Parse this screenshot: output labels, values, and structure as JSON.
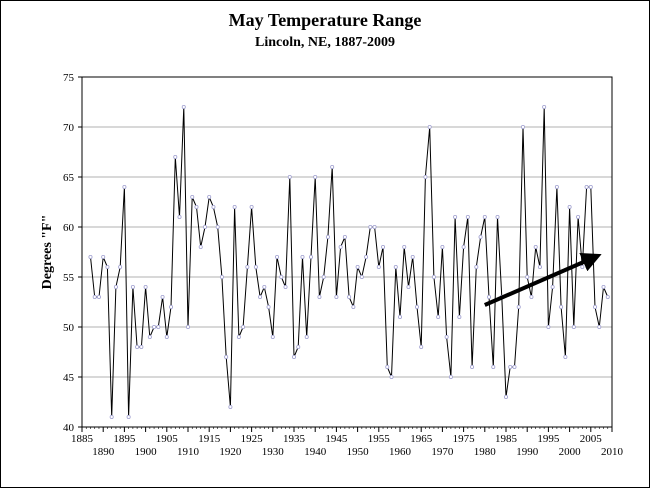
{
  "chart_data": {
    "type": "line",
    "title": "May Temperature Range",
    "subtitle": "Lincoln, NE, 1887-2009",
    "xlabel": "",
    "ylabel": "Degrees \"F\"",
    "xlim": [
      1885,
      2010
    ],
    "ylim": [
      40,
      75
    ],
    "grid": true,
    "legend": "none",
    "x_ticks_upper": [
      1885,
      1895,
      1905,
      1915,
      1925,
      1935,
      1945,
      1955,
      1965,
      1975,
      1985,
      1995,
      2005
    ],
    "x_ticks_lower": [
      1890,
      1900,
      1910,
      1920,
      1930,
      1940,
      1950,
      1960,
      1970,
      1980,
      1990,
      2000,
      2010
    ],
    "y_ticks": [
      40,
      45,
      50,
      55,
      60,
      65,
      70,
      75
    ],
    "line_color": "#000000",
    "marker_color": "#a0a0d0",
    "series": [
      {
        "x": [
          1887,
          1888,
          1889,
          1890,
          1891,
          1892,
          1893,
          1894,
          1895,
          1896,
          1897,
          1898,
          1899,
          1900,
          1901,
          1902,
          1903,
          1904,
          1905,
          1906,
          1907,
          1908,
          1909,
          1910,
          1911,
          1912,
          1913,
          1914,
          1915,
          1916,
          1917,
          1918,
          1919,
          1920,
          1921,
          1922,
          1923,
          1924,
          1925,
          1926,
          1927,
          1928,
          1929,
          1930,
          1931,
          1932,
          1933,
          1934,
          1935,
          1936,
          1937,
          1938,
          1939,
          1940,
          1941,
          1942,
          1943,
          1944,
          1945,
          1946,
          1947,
          1948,
          1949,
          1950,
          1951,
          1952,
          1953,
          1954,
          1955,
          1956,
          1957,
          1958,
          1959,
          1960,
          1961,
          1962,
          1963,
          1964,
          1965,
          1966,
          1967,
          1968,
          1969,
          1970,
          1971,
          1972,
          1973,
          1974,
          1975,
          1976,
          1977,
          1978,
          1979,
          1980,
          1981,
          1982,
          1983,
          1984,
          1985,
          1986,
          1987,
          1988,
          1989,
          1990,
          1991,
          1992,
          1993,
          1994,
          1995,
          1996,
          1997,
          1998,
          1999,
          2000,
          2001,
          2002,
          2003,
          2004,
          2005,
          2006,
          2007,
          2008,
          2009
        ],
        "y": [
          57,
          53,
          53,
          57,
          56,
          41,
          54,
          56,
          64,
          41,
          54,
          48,
          48,
          54,
          49,
          50,
          50,
          53,
          49,
          52,
          67,
          61,
          72,
          50,
          63,
          62,
          58,
          60,
          63,
          62,
          60,
          55,
          47,
          42,
          62,
          49,
          50,
          56,
          62,
          56,
          53,
          54,
          52,
          49,
          57,
          55,
          54,
          65,
          47,
          48,
          57,
          49,
          57,
          65,
          53,
          55,
          59,
          66,
          53,
          58,
          59,
          53,
          52,
          56,
          55,
          57,
          60,
          60,
          56,
          58,
          46,
          45,
          56,
          51,
          58,
          54,
          57,
          52,
          48,
          65,
          70,
          55,
          51,
          58,
          49,
          45,
          61,
          51,
          58,
          61,
          46,
          56,
          59,
          61,
          53,
          46,
          61,
          53,
          43,
          46,
          46,
          52,
          70,
          55,
          53,
          58,
          56,
          72,
          50,
          54,
          64,
          52,
          47,
          62,
          50,
          61,
          56,
          64,
          64,
          52,
          50,
          54,
          53
        ]
      }
    ],
    "annotations": [
      {
        "type": "arrow",
        "from": [
          1980,
          52.2
        ],
        "to": [
          2006,
          57
        ]
      }
    ]
  }
}
